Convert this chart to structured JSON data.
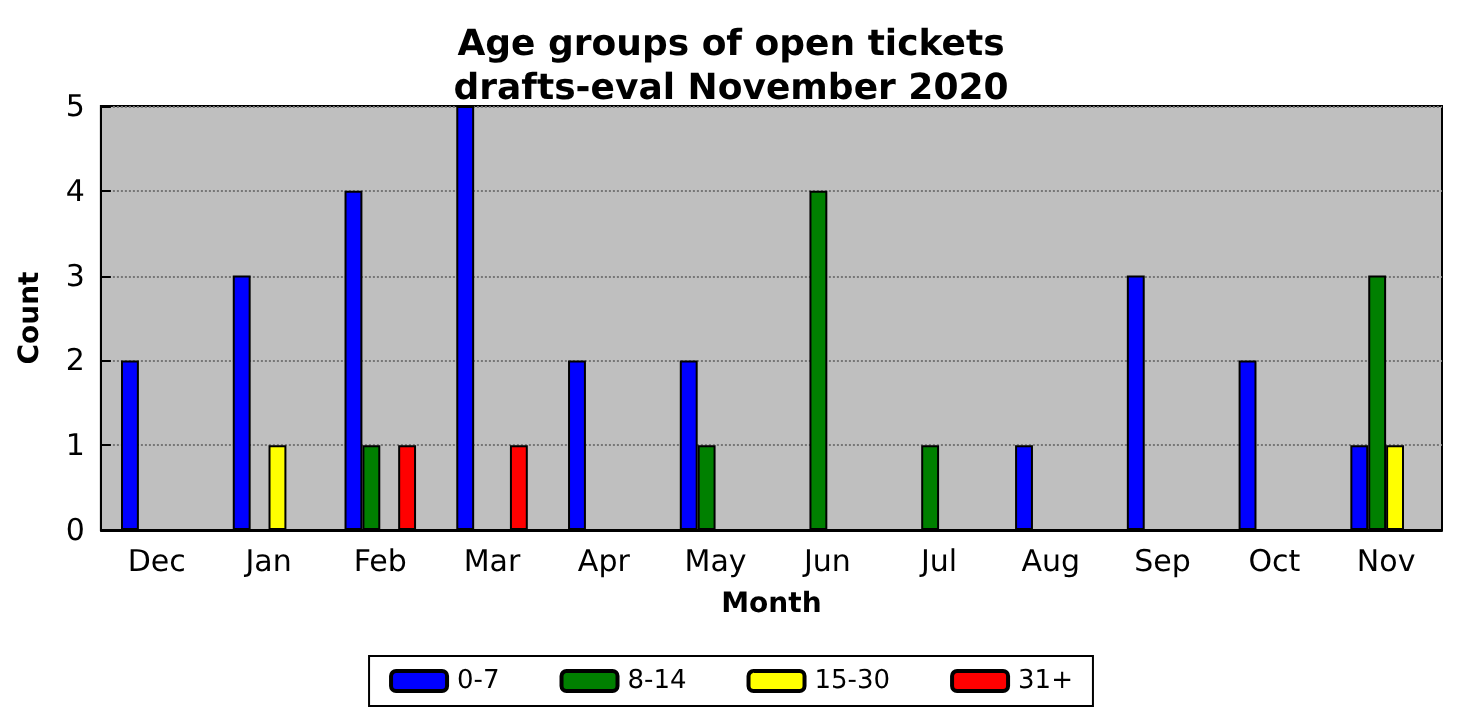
{
  "chart_data": {
    "type": "bar",
    "title": "Age groups of open tickets\ndrafts-eval November 2020",
    "xlabel": "Month",
    "ylabel": "Count",
    "categories": [
      "Dec",
      "Jan",
      "Feb",
      "Mar",
      "Apr",
      "May",
      "Jun",
      "Jul",
      "Aug",
      "Sep",
      "Oct",
      "Nov"
    ],
    "series": [
      {
        "name": "0-7",
        "color": "#0000ff",
        "values": [
          2,
          3,
          4,
          5,
          2,
          2,
          0,
          0,
          1,
          3,
          2,
          1
        ]
      },
      {
        "name": "8-14",
        "color": "#008000",
        "values": [
          0,
          0,
          1,
          0,
          0,
          1,
          4,
          1,
          0,
          0,
          0,
          3
        ]
      },
      {
        "name": "15-30",
        "color": "#ffff00",
        "values": [
          0,
          1,
          0,
          0,
          0,
          0,
          0,
          0,
          0,
          0,
          0,
          1
        ]
      },
      {
        "name": "31+",
        "color": "#ff0000",
        "values": [
          0,
          0,
          1,
          1,
          0,
          0,
          0,
          0,
          0,
          0,
          0,
          0
        ]
      }
    ],
    "ylim": [
      0,
      5
    ],
    "yticks": [
      0,
      1,
      2,
      3,
      4,
      5
    ],
    "grid": "y",
    "legend": "bottom"
  }
}
